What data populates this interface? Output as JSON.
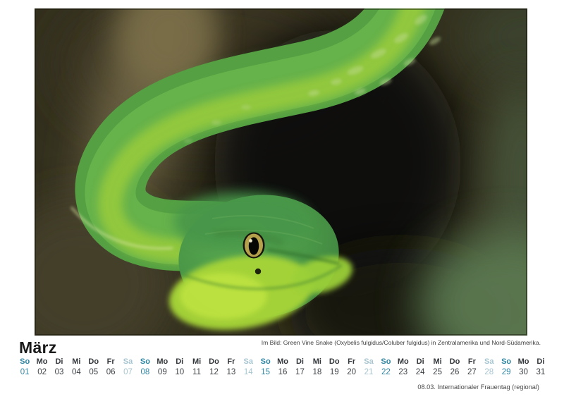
{
  "page": {
    "background": "#ffffff"
  },
  "photo": {
    "subject": "green-vine-snake",
    "caption": "Im Bild: Green Vine Snake (Oxybelis fulgidus/Coluber fulgidus) in Zentralamerika und Nord-Südamerika."
  },
  "calendar": {
    "month_label": "März",
    "note": "08.03. Internationaler Frauentag (regional)",
    "days": [
      {
        "weekday": "So",
        "date": "01",
        "type": "sunday"
      },
      {
        "weekday": "Mo",
        "date": "02",
        "type": "weekday"
      },
      {
        "weekday": "Di",
        "date": "03",
        "type": "weekday"
      },
      {
        "weekday": "Mi",
        "date": "04",
        "type": "weekday"
      },
      {
        "weekday": "Do",
        "date": "05",
        "type": "weekday"
      },
      {
        "weekday": "Fr",
        "date": "06",
        "type": "weekday"
      },
      {
        "weekday": "Sa",
        "date": "07",
        "type": "saturday"
      },
      {
        "weekday": "So",
        "date": "08",
        "type": "sunday"
      },
      {
        "weekday": "Mo",
        "date": "09",
        "type": "weekday"
      },
      {
        "weekday": "Di",
        "date": "10",
        "type": "weekday"
      },
      {
        "weekday": "Mi",
        "date": "11",
        "type": "weekday"
      },
      {
        "weekday": "Do",
        "date": "12",
        "type": "weekday"
      },
      {
        "weekday": "Fr",
        "date": "13",
        "type": "weekday"
      },
      {
        "weekday": "Sa",
        "date": "14",
        "type": "saturday"
      },
      {
        "weekday": "So",
        "date": "15",
        "type": "sunday"
      },
      {
        "weekday": "Mo",
        "date": "16",
        "type": "weekday"
      },
      {
        "weekday": "Di",
        "date": "17",
        "type": "weekday"
      },
      {
        "weekday": "Mi",
        "date": "18",
        "type": "weekday"
      },
      {
        "weekday": "Do",
        "date": "19",
        "type": "weekday"
      },
      {
        "weekday": "Fr",
        "date": "20",
        "type": "weekday"
      },
      {
        "weekday": "Sa",
        "date": "21",
        "type": "saturday"
      },
      {
        "weekday": "So",
        "date": "22",
        "type": "sunday"
      },
      {
        "weekday": "Mo",
        "date": "23",
        "type": "weekday"
      },
      {
        "weekday": "Di",
        "date": "24",
        "type": "weekday"
      },
      {
        "weekday": "Mi",
        "date": "25",
        "type": "weekday"
      },
      {
        "weekday": "Do",
        "date": "26",
        "type": "weekday"
      },
      {
        "weekday": "Fr",
        "date": "27",
        "type": "weekday"
      },
      {
        "weekday": "Sa",
        "date": "28",
        "type": "saturday"
      },
      {
        "weekday": "So",
        "date": "29",
        "type": "sunday"
      },
      {
        "weekday": "Mo",
        "date": "30",
        "type": "weekday"
      },
      {
        "weekday": "Di",
        "date": "31",
        "type": "weekday"
      }
    ]
  },
  "colors": {
    "sunday": "#2e86a3",
    "saturday": "#a7c5d0",
    "weekday_name": "#33373b",
    "weekday_date": "#3d4145",
    "title": "#1a1a1a",
    "caption": "#3f3f3f",
    "note": "#4a4a4a"
  }
}
